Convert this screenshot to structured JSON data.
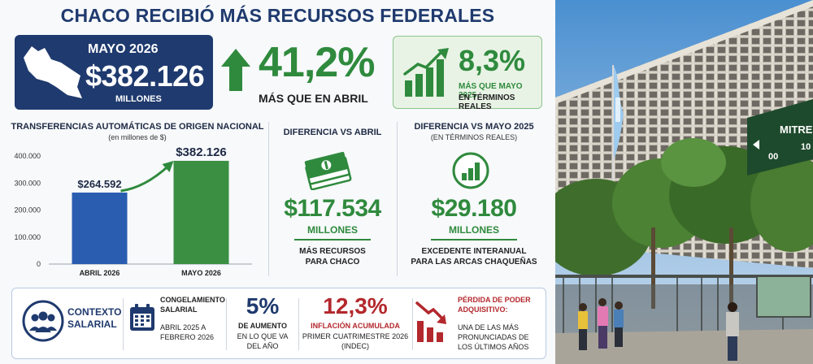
{
  "title": "CHACO RECIBIÓ MÁS RECURSOS FEDERALES",
  "headline_card": {
    "month": "MAYO 2026",
    "amount": "$382.126",
    "unit": "MILLONES"
  },
  "monthly_change": {
    "value": "41,2%",
    "label": "MÁS QUE EN ABRIL"
  },
  "yearly_change": {
    "value": "8,3%",
    "line1": "MÁS QUE MAYO 2025",
    "line2": "EN TÉRMINOS REALES"
  },
  "transfers": {
    "heading": "TRANSFERENCIAS AUTOMÁTICAS DE ORIGEN NACIONAL",
    "subheading": "(en millones de $)"
  },
  "chart_data": {
    "type": "bar",
    "categories": [
      "ABRIL 2026",
      "MAYO 2026"
    ],
    "values": [
      264592,
      382126
    ],
    "value_labels": [
      "$264.592",
      "$382.126"
    ],
    "ylim": [
      0,
      400000
    ],
    "yticks": [
      0,
      100000,
      200000,
      300000,
      400000
    ],
    "ytick_labels": [
      "0",
      "100.000",
      "200.000",
      "300.000",
      "400.000"
    ],
    "colors": [
      "#2a5db0",
      "#3a8f43"
    ],
    "grid": false,
    "title": "",
    "xlabel": "",
    "ylabel": ""
  },
  "diff_april": {
    "heading": "DIFERENCIA VS ABRIL",
    "amount": "$117.534",
    "unit": "MILLONES",
    "desc1": "MÁS RECURSOS",
    "desc2": "PARA CHACO"
  },
  "diff_may2025": {
    "heading": "DIFERENCIA VS MAYO 2025",
    "subheading": "(EN TÉRMINOS REALES)",
    "amount": "$29.180",
    "unit": "MILLONES",
    "desc1": "EXCEDENTE INTERANUAL",
    "desc2": "PARA LAS ARCAS CHAQUEÑAS"
  },
  "context": {
    "title1": "CONTEXTO",
    "title2": "SALARIAL",
    "freeze_title1": "CONGELAMIENTO",
    "freeze_title2": "SALARIAL",
    "freeze_line1": "ABRIL 2025 A",
    "freeze_line2": "FEBRERO 2026",
    "raise_value": "5%",
    "raise_line1": "DE AUMENTO",
    "raise_line2": "EN LO QUE VA",
    "raise_line3": "DEL AÑO",
    "inflation_value": "12,3%",
    "inflation_line1": "INFLACIÓN ACUMULADA",
    "inflation_line2": "PRIMER CUATRIMESTRE 2026",
    "inflation_line3": "(INDEC)",
    "loss_title1": "PÉRDIDA DE PODER",
    "loss_title2": "ADQUISITIVO:",
    "loss_line1": "UNA DE LAS MÁS",
    "loss_line2": "PRONUNCIADAS DE",
    "loss_line3": "LOS ÚLTIMOS AÑOS"
  },
  "photo": {
    "street_sign": "MITRE",
    "sign_numbers_left": "00",
    "sign_numbers_right": "10"
  },
  "colors": {
    "navy": "#1f3a6e",
    "green": "#2f8a3d",
    "red": "#b3282d",
    "blue": "#2a5db0"
  }
}
